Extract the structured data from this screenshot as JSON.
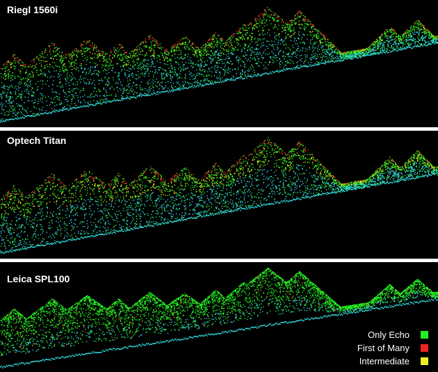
{
  "panels": [
    {
      "title": "Riegl 1560i",
      "profile": "riegl"
    },
    {
      "title": "Optech Titan",
      "profile": "optech"
    },
    {
      "title": "Leica SPL100",
      "profile": "leica"
    }
  ],
  "legend": [
    {
      "label": "Only Echo",
      "color": "#22ee22"
    },
    {
      "label": "First of Many",
      "color": "#ee2222"
    },
    {
      "label": "Intermediate",
      "color": "#eeee22"
    }
  ],
  "colors": {
    "ground": "#33d6d6",
    "canopy_green": "#22ee22",
    "canopy_red": "#ee3322",
    "intermediate": "#eeee22",
    "background": "#000000"
  }
}
